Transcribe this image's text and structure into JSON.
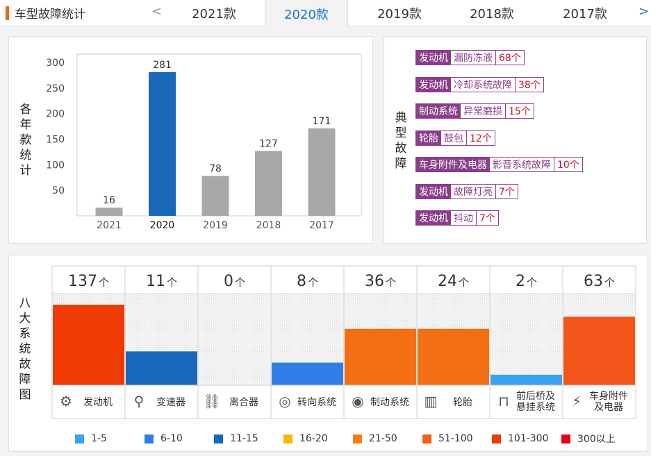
{
  "header": {
    "title": "车型故障统计",
    "prev_arrow": "<",
    "next_arrow": ">",
    "tabs": [
      {
        "label": "2021款",
        "active": false
      },
      {
        "label": "2020款",
        "active": true
      },
      {
        "label": "2019款",
        "active": false
      },
      {
        "label": "2018款",
        "active": false
      },
      {
        "label": "2017款",
        "active": false
      }
    ]
  },
  "bar_chart": {
    "ylabel": "各年款统计",
    "chart_data": {
      "type": "bar",
      "categories": [
        "2021",
        "2020",
        "2019",
        "2018",
        "2017"
      ],
      "values": [
        16,
        281,
        78,
        127,
        171
      ],
      "highlight": "2020",
      "ylim": [
        0,
        300
      ],
      "yticks": [
        50,
        100,
        150,
        200,
        250,
        300
      ],
      "bar_color": "#a8a8a8",
      "highlight_color": "#1a68b9",
      "grid": false
    }
  },
  "typical_faults": {
    "label": "典型故障",
    "items": [
      {
        "category": "发动机",
        "name": "漏防冻液",
        "count": "68个"
      },
      {
        "category": "发动机",
        "name": "冷却系统故障",
        "count": "38个"
      },
      {
        "category": "制动系统",
        "name": "异常磨损",
        "count": "15个"
      },
      {
        "category": "轮胎",
        "name": "鼓包",
        "count": "12个"
      },
      {
        "category": "车身附件及电器",
        "name": "影音系统故障",
        "count": "10个"
      },
      {
        "category": "发动机",
        "name": "故障灯亮",
        "count": "7个"
      },
      {
        "category": "发动机",
        "name": "抖动",
        "count": "7个"
      }
    ]
  },
  "systems": {
    "label": "八大系统故障图",
    "unit": "个",
    "chart_data": {
      "type": "bar",
      "categories": [
        "发动机",
        "变速器",
        "离合器",
        "转向系统",
        "制动系统",
        "轮胎",
        "前后桥及悬挂系统",
        "车身附件及电器"
      ],
      "values": [
        137,
        11,
        0,
        8,
        36,
        24,
        2,
        63
      ],
      "colors": [
        "#f03a05",
        "#1a68b9",
        "#1a68b9",
        "#2f7ee8",
        "#f26f13",
        "#f26f13",
        "#3aa3f0",
        "#f2541a"
      ],
      "fill_fraction": [
        1.0,
        0.42,
        0,
        0.28,
        0.7,
        0.7,
        0.13,
        0.85
      ]
    },
    "item_icons": [
      "engine-icon",
      "gearshift-icon",
      "clutch-icon",
      "steering-wheel-icon",
      "brake-disc-icon",
      "tire-icon",
      "suspension-icon",
      "battery-icon"
    ]
  },
  "legend": [
    {
      "label": "1-5",
      "color": "#3aa3f0"
    },
    {
      "label": "6-10",
      "color": "#2f7ee8"
    },
    {
      "label": "11-15",
      "color": "#1a68b9"
    },
    {
      "label": "16-20",
      "color": "#f7b800"
    },
    {
      "label": "21-50",
      "color": "#f27f1b"
    },
    {
      "label": "51-100",
      "color": "#f2611a"
    },
    {
      "label": "101-300",
      "color": "#f03a05"
    },
    {
      "label": "300以上",
      "color": "#e5001c"
    }
  ]
}
